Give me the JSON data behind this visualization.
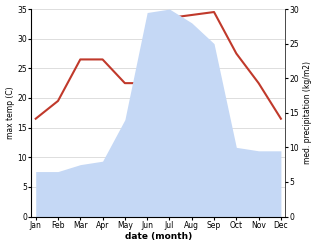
{
  "months": [
    "Jan",
    "Feb",
    "Mar",
    "Apr",
    "May",
    "Jun",
    "Jul",
    "Aug",
    "Sep",
    "Oct",
    "Nov",
    "Dec"
  ],
  "temperature": [
    16.5,
    19.5,
    26.5,
    26.5,
    22.5,
    22.5,
    33.5,
    34.0,
    34.5,
    27.5,
    22.5,
    16.5
  ],
  "precipitation": [
    6.5,
    6.5,
    7.5,
    8.0,
    14.0,
    29.5,
    30.0,
    28.0,
    25.0,
    10.0,
    9.5,
    9.5
  ],
  "temp_color": "#c0392b",
  "precip_fill_color": "#c5d8f5",
  "temp_ylim": [
    0,
    35
  ],
  "precip_ylim": [
    0,
    30
  ],
  "xlabel": "date (month)",
  "ylabel_left": "max temp (C)",
  "ylabel_right": "med. precipitation (kg/m2)",
  "bg_color": "#ffffff",
  "grid_color": "#d0d0d0",
  "left_yticks": [
    0,
    5,
    10,
    15,
    20,
    25,
    30,
    35
  ],
  "right_yticks": [
    0,
    5,
    10,
    15,
    20,
    25,
    30
  ]
}
